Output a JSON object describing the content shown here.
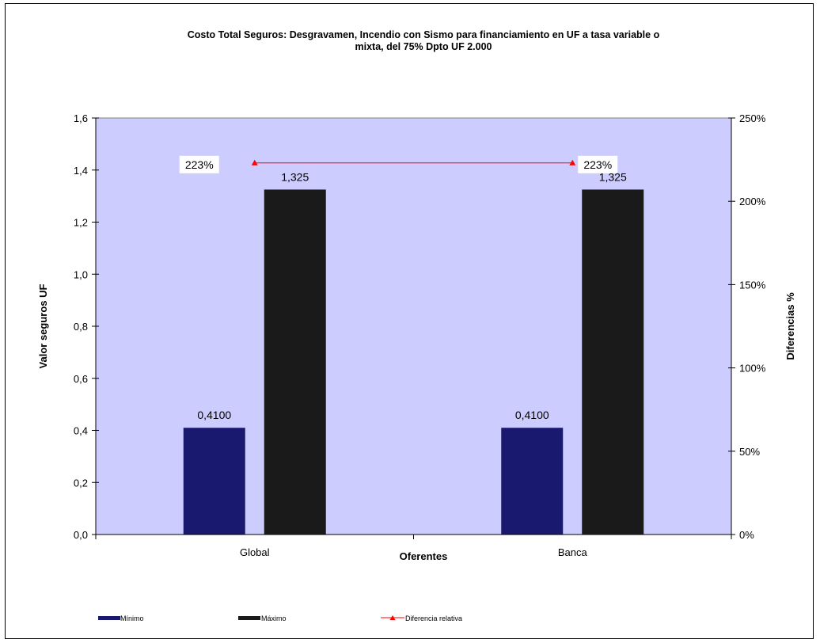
{
  "chart_data": {
    "type": "bar",
    "title_line1": "Costo Total Seguros: Desgravamen, Incendio con Sismo para financiamiento en UF a tasa variable o",
    "title_line2": "mixta, del 75% Dpto UF 2.000",
    "categories": [
      "Global",
      "Banca"
    ],
    "xlabel": "Oferentes",
    "ylabel": "Valor seguros UF",
    "y2label": "Diferencias %",
    "ylim": [
      0,
      1.6
    ],
    "y2lim": [
      0,
      250
    ],
    "yticks": [
      "0,0",
      "0,2",
      "0,4",
      "0,6",
      "0,8",
      "1,0",
      "1,2",
      "1,4",
      "1,6"
    ],
    "ytick_values": [
      0,
      0.2,
      0.4,
      0.6,
      0.8,
      1.0,
      1.2,
      1.4,
      1.6
    ],
    "y2ticks": [
      "0%",
      "50%",
      "100%",
      "150%",
      "200%",
      "250%"
    ],
    "y2tick_values": [
      0,
      50,
      100,
      150,
      200,
      250
    ],
    "series": [
      {
        "name": "Mínimo",
        "values": [
          0.41,
          0.41
        ],
        "labels": [
          "0,4100",
          "0,4100"
        ],
        "color": "#191970"
      },
      {
        "name": "Máximo",
        "values": [
          1.325,
          1.325
        ],
        "labels": [
          "1,325",
          "1,325"
        ],
        "color": "#1a1a1a"
      }
    ],
    "line_series": {
      "name": "Diferencia relativa",
      "values": [
        223,
        223
      ],
      "labels": [
        "223%",
        "223%"
      ],
      "color": "#ff0000"
    },
    "plot_background": "#ccccff",
    "legend_position": "bottom"
  }
}
